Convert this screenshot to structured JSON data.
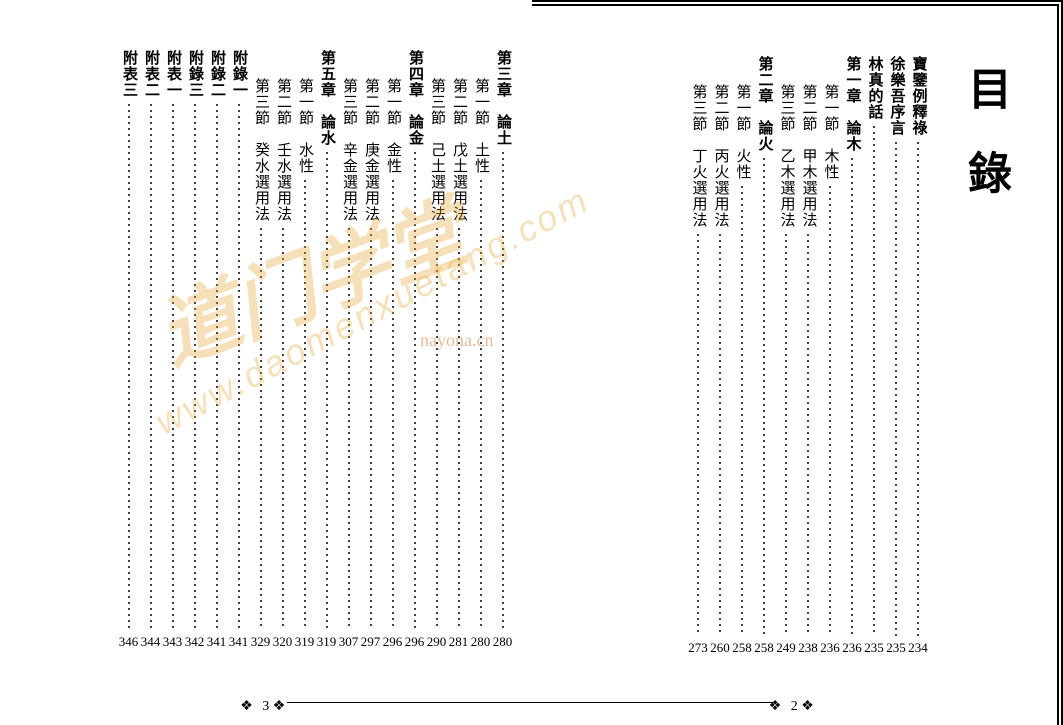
{
  "title": "目錄",
  "page_left_number": "3",
  "page_right_number": "2",
  "ornament": "❖",
  "watermarks": {
    "wm1": "道门学堂",
    "wm2": "nayona.cn",
    "wm3": "www.daomenxuetang.com"
  },
  "right_entries": [
    {
      "label": "寶鑒例釋祿",
      "level": 0,
      "page": "234"
    },
    {
      "label": "徐樂吾序言",
      "level": 0,
      "page": "235"
    },
    {
      "label": "林真的話",
      "level": 0,
      "page": "235"
    },
    {
      "label": "第一章　論木",
      "level": 0,
      "page": "236"
    },
    {
      "label": "第一節　木性",
      "level": 1,
      "page": "236"
    },
    {
      "label": "第二節　甲木選用法",
      "level": 1,
      "page": "238"
    },
    {
      "label": "第三節　乙木選用法",
      "level": 1,
      "page": "249"
    },
    {
      "label": "第二章　論火",
      "level": 0,
      "page": "258"
    },
    {
      "label": "第一節　火性",
      "level": 1,
      "page": "258"
    },
    {
      "label": "第二節　丙火選用法",
      "level": 1,
      "page": "260"
    },
    {
      "label": "第三節　丁火選用法",
      "level": 1,
      "page": "273"
    }
  ],
  "left_entries": [
    {
      "label": "第三章　論土",
      "level": 0,
      "page": "280"
    },
    {
      "label": "第一節　土性",
      "level": 1,
      "page": "280"
    },
    {
      "label": "第二節　戊土選用法",
      "level": 1,
      "page": "281"
    },
    {
      "label": "第三節　己土選用法",
      "level": 1,
      "page": "290"
    },
    {
      "label": "第四章　論金",
      "level": 0,
      "page": "296"
    },
    {
      "label": "第一節　金性",
      "level": 1,
      "page": "296"
    },
    {
      "label": "第二節　庚金選用法",
      "level": 1,
      "page": "297"
    },
    {
      "label": "第三節　辛金選用法",
      "level": 1,
      "page": "307"
    },
    {
      "label": "第五章　論水",
      "level": 0,
      "page": "319"
    },
    {
      "label": "第一節　水性",
      "level": 1,
      "page": "319"
    },
    {
      "label": "第二節　壬水選用法",
      "level": 1,
      "page": "320"
    },
    {
      "label": "第三節　癸水選用法",
      "level": 1,
      "page": "329"
    },
    {
      "label": "附錄一",
      "level": 0,
      "page": "341"
    },
    {
      "label": "附錄二",
      "level": 0,
      "page": "341"
    },
    {
      "label": "附錄三",
      "level": 0,
      "page": "342"
    },
    {
      "label": "附表一",
      "level": 0,
      "page": "343"
    },
    {
      "label": "附表二",
      "level": 0,
      "page": "344"
    },
    {
      "label": "附表三",
      "level": 0,
      "page": "346"
    }
  ]
}
